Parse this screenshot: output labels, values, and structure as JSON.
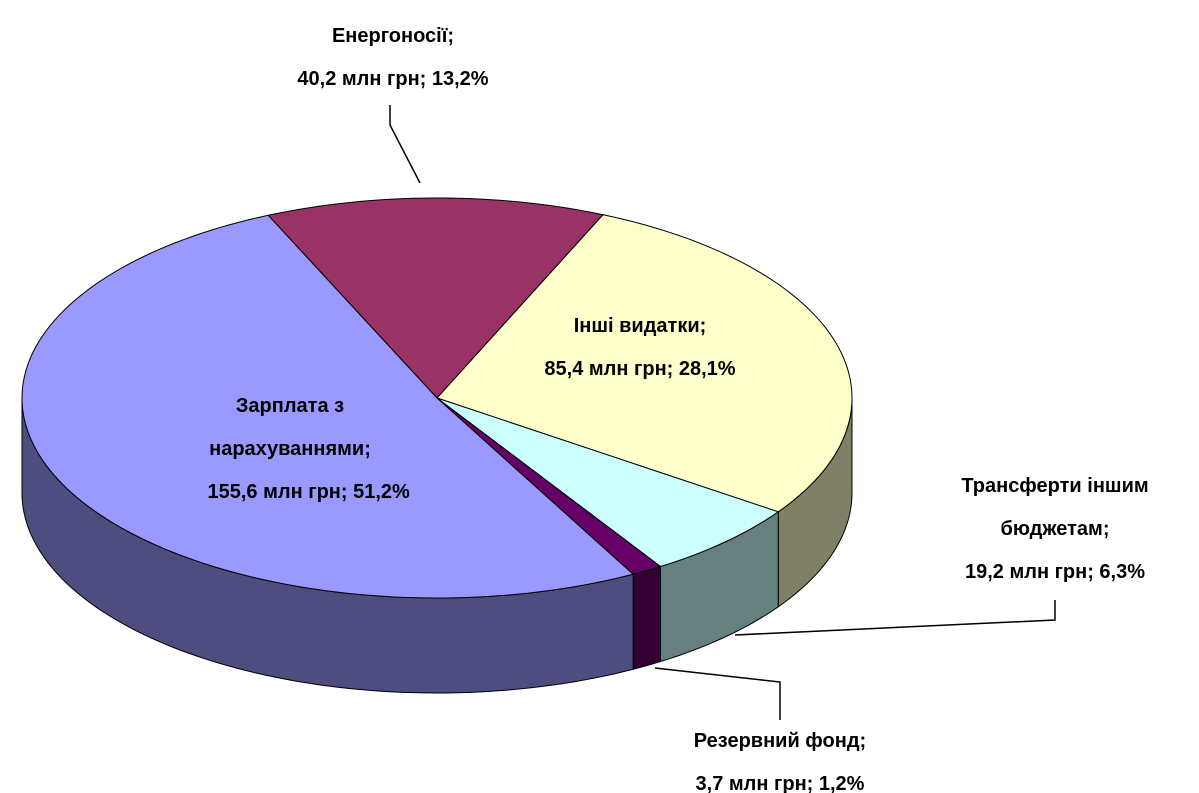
{
  "chart_data": {
    "type": "pie3d",
    "categories": [
      "Енергоносії;",
      "Інші видатки;",
      "Трансферти іншим бюджетам;",
      "Резервний фонд;",
      "Зарплата з нарахуваннями;"
    ],
    "values": [
      40.2,
      85.4,
      19.2,
      3.7,
      155.6
    ],
    "value_labels": [
      "40,2 млн грн; 13,2%",
      "85,4 млн грн; 28,1%",
      "19,2 млн грн; 6,3%",
      "3,7 млн грн; 1,2%",
      "155,6 млн грн; 51,2%"
    ],
    "colors": [
      "#993366",
      "#ffffcc",
      "#ccffff",
      "#660066",
      "#9999ff"
    ]
  }
}
